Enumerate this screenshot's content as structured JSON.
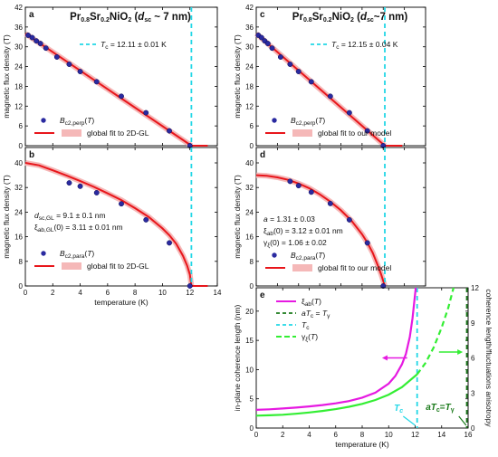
{
  "colors": {
    "fit": "#e8161b",
    "band": "#f5b8b8",
    "point": "#2a2aa0",
    "tc": "#22d7e6",
    "xi": "#e619e1",
    "gamma": "#33ee33",
    "aTc": "#1a7a1a"
  },
  "chart_data": [
    {
      "id": "a",
      "type": "scatter",
      "panel_label": "a",
      "title_html": "Pr<tspan font-size='7' dy='2'>0.8</tspan><tspan dy='-2'>Sr</tspan><tspan font-size='7' dy='2'>0.2</tspan><tspan dy='-2'>NiO</tspan><tspan font-size='7' dy='2'>2</tspan><tspan dy='-2'> (</tspan><tspan font-style='italic'>d</tspan><tspan font-size='7' dy='2'>sc</tspan><tspan dy='-2'> ~ 7 nm)</tspan>",
      "ylabel": "magnetic flux density (T)",
      "xlim": [
        0,
        14
      ],
      "ylim": [
        0,
        42
      ],
      "yticks": [
        0,
        6,
        12,
        18,
        24,
        30,
        36,
        42
      ],
      "tc_line": 12.11,
      "tc_label_html": "<tspan font-style='italic'>T</tspan><tspan font-size='6.5' dy='2'>c</tspan><tspan dy='-2'> = 12.11 ± 0.01 K</tspan>",
      "points": {
        "x": [
          0.2,
          0.5,
          0.8,
          1.1,
          1.5,
          2.3,
          3.2,
          4.0,
          5.2,
          7.0,
          8.8,
          10.5,
          12.0
        ],
        "y": [
          33.5,
          32.8,
          31.8,
          31.0,
          29.6,
          26.9,
          24.7,
          22.5,
          19.4,
          15.0,
          10.0,
          4.5,
          0.0
        ]
      },
      "fit": {
        "x": [
          0,
          12.11
        ],
        "y": [
          34.0,
          0.0
        ]
      },
      "fit_tail": {
        "x": [
          12.11,
          13.3
        ],
        "y": [
          0,
          0
        ]
      },
      "legend": {
        "points_html": "<tspan font-style='italic'>B</tspan><tspan font-size='6.5' dy='2'>c2,perp</tspan><tspan dy='-2'>(</tspan><tspan font-style='italic'>T</tspan><tspan>)</tspan>",
        "fit": "global fit to 2D-GL"
      }
    },
    {
      "id": "b",
      "type": "scatter",
      "panel_label": "b",
      "xlabel": "temperature (K)",
      "ylabel": "magnetic flux density (T)",
      "xlim": [
        0,
        14
      ],
      "ylim": [
        0,
        45
      ],
      "xticks": [
        0,
        2,
        4,
        6,
        8,
        10,
        12,
        14
      ],
      "yticks": [
        0,
        8,
        16,
        24,
        32,
        40
      ],
      "tc_line": 12.11,
      "points": {
        "x": [
          3.2,
          4.0,
          5.2,
          7.0,
          8.8,
          10.5,
          12.0
        ],
        "y": [
          33.5,
          32.4,
          30.3,
          26.7,
          21.5,
          14.0,
          0.0
        ]
      },
      "fit": {
        "x": [
          0,
          1,
          2,
          3,
          4,
          5,
          6,
          7,
          8,
          9,
          10,
          10.5,
          11,
          11.5,
          11.8,
          12.0,
          12.11
        ],
        "y": [
          40.0,
          39.2,
          37.6,
          35.9,
          34.1,
          32.2,
          30.1,
          27.9,
          25.3,
          22.4,
          18.7,
          16.5,
          13.7,
          9.8,
          6.6,
          3.7,
          0.0
        ]
      },
      "fit_tail": {
        "x": [
          12.11,
          13.3
        ],
        "y": [
          0,
          0
        ]
      },
      "annotation_1_html": "<tspan font-style='italic'>d</tspan><tspan font-size='6.5' dy='2'>sc,GL</tspan><tspan dy='-2'> = 9.1 ± 0.1 nm</tspan>",
      "annotation_2_html": "ξ<tspan font-size='6.5' dy='2'>ab,GL</tspan><tspan dy='-2'>(0) = 3.11 ± 0.01 nm</tspan>",
      "legend": {
        "points_html": "<tspan font-style='italic'>B</tspan><tspan font-size='6.5' dy='2'>c2,para</tspan><tspan dy='-2'>(</tspan><tspan font-style='italic'>T</tspan><tspan>)</tspan>",
        "fit": "global fit to 2D-GL"
      }
    },
    {
      "id": "c",
      "type": "scatter",
      "panel_label": "c",
      "title_html": "Pr<tspan font-size='7' dy='2'>0.8</tspan><tspan dy='-2'>Sr</tspan><tspan font-size='7' dy='2'>0.2</tspan><tspan dy='-2'>NiO</tspan><tspan font-size='7' dy='2'>2</tspan><tspan dy='-2'> (</tspan><tspan font-style='italic'>d</tspan><tspan font-size='7' dy='2'>sc</tspan><tspan dy='-2'>~7 nm)</tspan>",
      "ylabel": "magnetic flux density (T)",
      "xlim": [
        0,
        16
      ],
      "ylim": [
        0,
        42
      ],
      "yticks": [
        0,
        6,
        12,
        18,
        24,
        30,
        36,
        42
      ],
      "tc_line": 12.15,
      "tc_label_html": "<tspan font-style='italic'>T</tspan><tspan font-size='6.5' dy='2'>c</tspan><tspan dy='-2'> = 12.15 ± 0.04 K</tspan>",
      "points": {
        "x": [
          0.2,
          0.5,
          0.8,
          1.1,
          1.5,
          2.3,
          3.2,
          4.0,
          5.2,
          7.0,
          8.8,
          10.5,
          12.0
        ],
        "y": [
          33.5,
          32.8,
          31.8,
          31.0,
          29.6,
          26.9,
          24.7,
          22.5,
          19.4,
          15.0,
          10.0,
          4.5,
          0.0
        ]
      },
      "fit": {
        "x": [
          0,
          12.15
        ],
        "y": [
          34.0,
          0.0
        ]
      },
      "fit_tail": {
        "x": [
          12.15,
          13.8
        ],
        "y": [
          0,
          0
        ]
      },
      "legend": {
        "points_html": "<tspan font-style='italic'>B</tspan><tspan font-size='6.5' dy='2'>c2,perp</tspan><tspan dy='-2'>(</tspan><tspan font-style='italic'>T</tspan><tspan>)</tspan>",
        "fit": "global fit to our model"
      }
    },
    {
      "id": "d",
      "type": "scatter",
      "panel_label": "d",
      "ylabel": "magnetic flux density (T)",
      "xlim": [
        0,
        16
      ],
      "ylim": [
        0,
        45
      ],
      "yticks": [
        0,
        8,
        16,
        24,
        32,
        40
      ],
      "tc_line": 12.15,
      "points": {
        "x": [
          3.2,
          4.0,
          5.2,
          7.0,
          8.8,
          10.5,
          12.0
        ],
        "y": [
          34.0,
          32.6,
          30.5,
          26.8,
          21.5,
          14.0,
          0.0
        ]
      },
      "fit": {
        "x": [
          0,
          1,
          2,
          3,
          4,
          5,
          6,
          7,
          8,
          9,
          10,
          10.5,
          11,
          11.5,
          11.8,
          12.0,
          12.15
        ],
        "y": [
          36.0,
          35.8,
          35.3,
          34.5,
          33.3,
          31.8,
          29.8,
          27.4,
          24.6,
          21.2,
          16.8,
          14.1,
          10.8,
          6.6,
          3.8,
          1.6,
          0.0
        ]
      },
      "annotation_1_html": "<tspan font-style='italic'>a</tspan><tspan> = 1.31 ± 0.03</tspan>",
      "annotation_2_html": "ξ<tspan font-size='6.5' dy='2'>ab</tspan><tspan dy='-2'>(0) = 3.12 ± 0.01 nm</tspan>",
      "annotation_3_html": "γ<tspan font-size='6.5' dy='2'>ξ</tspan><tspan dy='-2'>(0) = 1.06 ± 0.02</tspan>",
      "legend": {
        "points_html": "<tspan font-style='italic'>B</tspan><tspan font-size='6.5' dy='2'>c2,para</tspan><tspan dy='-2'>(</tspan><tspan font-style='italic'>T</tspan><tspan>)</tspan>",
        "fit": "global fit to our model"
      }
    },
    {
      "id": "e",
      "type": "line",
      "panel_label": "e",
      "xlabel": "temperature (K)",
      "ylabel": "in-plane coherence length (nm)",
      "ylabel_right": "coherence length/fluctuations anisotropy",
      "xlim": [
        0,
        16
      ],
      "ylim": [
        0,
        24
      ],
      "ylim_right": [
        0,
        12
      ],
      "xticks": [
        0,
        2,
        4,
        6,
        8,
        10,
        12,
        14,
        16
      ],
      "yticks": [
        0,
        5,
        10,
        15,
        20
      ],
      "yticks_right": [
        0,
        3,
        6,
        9,
        12
      ],
      "tc_line": 12.15,
      "atc_line": 15.9,
      "series": [
        {
          "key": "xi",
          "axis": "left",
          "legend_html": "ξ<tspan font-size='6.5' dy='2'>ab</tspan><tspan dy='-2'>(</tspan><tspan font-style='italic'>T</tspan><tspan>)</tspan>",
          "x": [
            0,
            1,
            2,
            3,
            4,
            5,
            6,
            7,
            8,
            9,
            10,
            10.5,
            11,
            11.3,
            11.6,
            11.8,
            11.95,
            12.05
          ],
          "y": [
            3.12,
            3.2,
            3.34,
            3.5,
            3.7,
            3.93,
            4.22,
            4.62,
            5.2,
            6.05,
            7.6,
            8.9,
            10.9,
            12.7,
            15.6,
            18.8,
            22.0,
            24.0
          ]
        },
        {
          "key": "gamma",
          "axis": "right",
          "legend_html": "γ<tspan font-size='6.5' dy='2'>ξ</tspan><tspan dy='-2'>(</tspan><tspan font-style='italic'>T</tspan><tspan>)</tspan>",
          "x": [
            0,
            1,
            2,
            3,
            4,
            5,
            6,
            7,
            8,
            9,
            10,
            11,
            12.15
          ],
          "y": [
            1.06,
            1.09,
            1.14,
            1.22,
            1.33,
            1.46,
            1.62,
            1.82,
            2.07,
            2.4,
            2.86,
            3.5,
            4.6
          ],
          "x_dashed": [
            12.15,
            12.8,
            13.4,
            14.0,
            14.5,
            14.9
          ],
          "y_dashed": [
            4.6,
            5.6,
            6.9,
            8.6,
            10.3,
            12.0
          ]
        }
      ],
      "legend_aTc_html": "<tspan font-style='italic'>aT</tspan><tspan font-size='6.5' dy='2'>c</tspan><tspan dy='-2'> = </tspan><tspan font-style='italic'>T</tspan><tspan font-size='6.5' dy='2'>γ</tspan>",
      "legend_tc_html": "<tspan font-style='italic'>T</tspan><tspan font-size='6.5' dy='2'>c</tspan>",
      "label_tc_html": "<tspan font-style='italic'>T</tspan><tspan font-size='7' dy='2'>c</tspan>",
      "label_atc_html": "<tspan font-style='italic'>aT</tspan><tspan font-size='7' dy='2'>c</tspan><tspan dy='-2'>=</tspan><tspan font-style='italic'>T</tspan><tspan font-size='7' dy='2'>γ</tspan>"
    }
  ]
}
